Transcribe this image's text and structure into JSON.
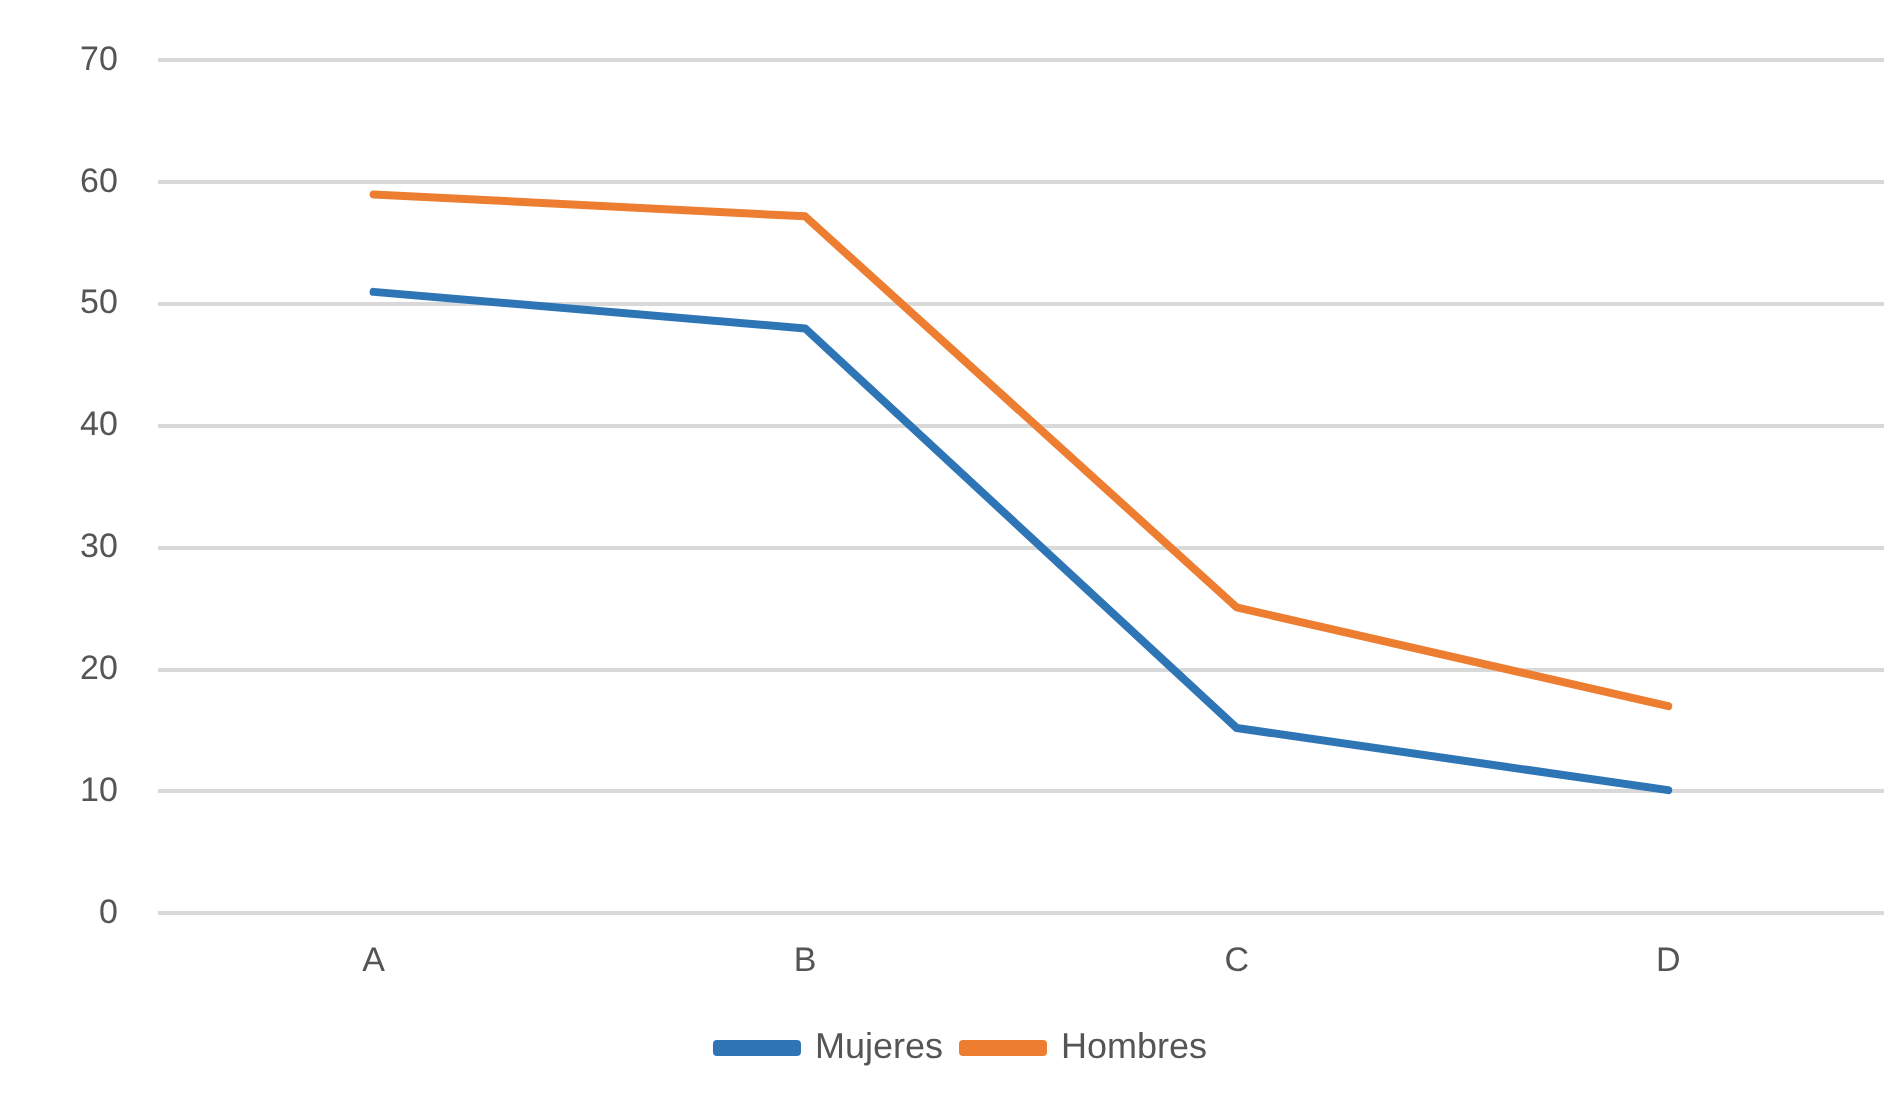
{
  "chart_data": {
    "type": "line",
    "categories": [
      "A",
      "B",
      "C",
      "D"
    ],
    "series": [
      {
        "name": "Mujeres",
        "color": "#2e75b6",
        "values": [
          51,
          48,
          15.2,
          10.1
        ]
      },
      {
        "name": "Hombres",
        "color": "#ed7d31",
        "values": [
          59,
          57.2,
          25.1,
          17
        ]
      }
    ],
    "ylim": [
      0,
      70
    ],
    "yticks": [
      0,
      10,
      20,
      30,
      40,
      50,
      60,
      70
    ],
    "grid": "y",
    "legend": "bottom",
    "marker": "none",
    "line_style": "solid"
  }
}
